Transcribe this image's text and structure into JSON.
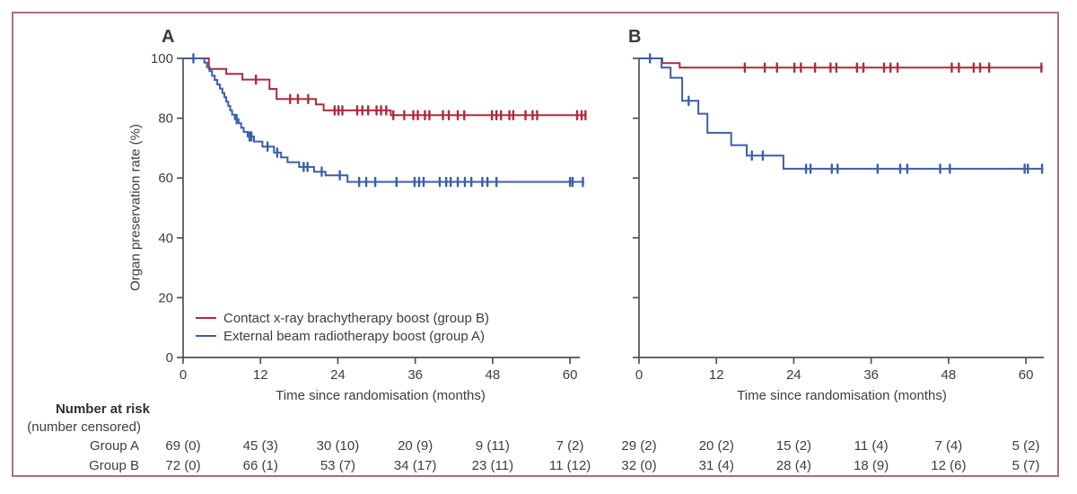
{
  "figure": {
    "border_color": "#b06d79",
    "background": "#ffffff",
    "text_color": "#3d3d3f",
    "axis_color": "#515154"
  },
  "y_axis_label": "Organ preservation rate (%)",
  "x_axis_label": "Time since randomisation (months)",
  "legend": {
    "items": [
      {
        "label": "Contact x-ray brachytherapy boost (group B)",
        "color": "#b02a3c"
      },
      {
        "label": "External beam radiotherapy boost (group A)",
        "color": "#3b5fa7"
      }
    ]
  },
  "chart_data": [
    {
      "id": "A",
      "label": "A",
      "type": "line",
      "subtype": "kaplan-meier-step",
      "xlabel": "Time since randomisation (months)",
      "ylabel": "Organ preservation rate (%)",
      "xlim": [
        0,
        63
      ],
      "ylim": [
        0,
        100
      ],
      "xticks": [
        0,
        12,
        24,
        36,
        48,
        60
      ],
      "yticks": [
        0,
        20,
        40,
        60,
        80,
        100
      ],
      "show_y_tick_labels": true,
      "grid": false,
      "legend_position": "lower-left",
      "series": [
        {
          "name": "Contact x-ray brachytherapy boost (group B)",
          "color": "#b02a3c",
          "steps": [
            [
              0,
              100
            ],
            [
              4.0,
              100
            ],
            [
              4.0,
              96.5
            ],
            [
              6.7,
              96.5
            ],
            [
              6.7,
              94.8
            ],
            [
              9.2,
              94.8
            ],
            [
              9.2,
              92.9
            ],
            [
              13.4,
              92.9
            ],
            [
              13.4,
              89.8
            ],
            [
              14.5,
              89.8
            ],
            [
              14.5,
              86.4
            ],
            [
              20.6,
              86.4
            ],
            [
              20.6,
              84.6
            ],
            [
              21.8,
              84.6
            ],
            [
              21.8,
              82.6
            ],
            [
              32.2,
              82.6
            ],
            [
              32.2,
              81.0
            ],
            [
              62.5,
              81.0
            ]
          ],
          "censors": [
            [
              11.3,
              92.9
            ],
            [
              16.6,
              86.4
            ],
            [
              17.8,
              86.4
            ],
            [
              19.4,
              86.4
            ],
            [
              23.5,
              82.6
            ],
            [
              24.1,
              82.6
            ],
            [
              24.7,
              82.6
            ],
            [
              27.0,
              82.6
            ],
            [
              27.8,
              82.6
            ],
            [
              28.7,
              82.6
            ],
            [
              30.0,
              82.6
            ],
            [
              30.7,
              82.6
            ],
            [
              31.5,
              82.6
            ],
            [
              32.6,
              81.0
            ],
            [
              34.3,
              81.0
            ],
            [
              35.7,
              81.0
            ],
            [
              36.4,
              81.0
            ],
            [
              37.5,
              81.0
            ],
            [
              38.2,
              81.0
            ],
            [
              40.3,
              81.0
            ],
            [
              41.2,
              81.0
            ],
            [
              42.6,
              81.0
            ],
            [
              43.6,
              81.0
            ],
            [
              47.9,
              81.0
            ],
            [
              48.6,
              81.0
            ],
            [
              49.3,
              81.0
            ],
            [
              50.6,
              81.0
            ],
            [
              51.2,
              81.0
            ],
            [
              53.1,
              81.0
            ],
            [
              54.2,
              81.0
            ],
            [
              54.9,
              81.0
            ],
            [
              61.1,
              81.0
            ],
            [
              61.8,
              81.0
            ],
            [
              62.4,
              81.0
            ]
          ]
        },
        {
          "name": "External beam radiotherapy boost (group A)",
          "color": "#3b5fa7",
          "steps": [
            [
              0,
              100
            ],
            [
              3.3,
              100
            ],
            [
              3.3,
              98.6
            ],
            [
              3.7,
              98.6
            ],
            [
              3.7,
              97.1
            ],
            [
              4.1,
              97.1
            ],
            [
              4.1,
              95.7
            ],
            [
              4.5,
              95.7
            ],
            [
              4.5,
              94.2
            ],
            [
              4.9,
              94.2
            ],
            [
              4.9,
              92.8
            ],
            [
              5.3,
              92.8
            ],
            [
              5.3,
              91.3
            ],
            [
              5.7,
              91.3
            ],
            [
              5.7,
              89.9
            ],
            [
              6.1,
              89.9
            ],
            [
              6.1,
              88.4
            ],
            [
              6.4,
              88.4
            ],
            [
              6.4,
              87.0
            ],
            [
              6.7,
              87.0
            ],
            [
              6.7,
              85.5
            ],
            [
              7.0,
              85.5
            ],
            [
              7.0,
              84.1
            ],
            [
              7.3,
              84.1
            ],
            [
              7.3,
              82.6
            ],
            [
              7.6,
              82.6
            ],
            [
              7.6,
              81.2
            ],
            [
              8.0,
              81.2
            ],
            [
              8.0,
              79.7
            ],
            [
              8.6,
              79.7
            ],
            [
              8.6,
              78.3
            ],
            [
              9.0,
              78.3
            ],
            [
              9.0,
              76.8
            ],
            [
              9.4,
              76.8
            ],
            [
              9.4,
              75.4
            ],
            [
              10.0,
              75.4
            ],
            [
              10.0,
              73.9
            ],
            [
              11.0,
              73.9
            ],
            [
              11.0,
              72.2
            ],
            [
              12.3,
              72.2
            ],
            [
              12.3,
              70.5
            ],
            [
              14.1,
              70.5
            ],
            [
              14.1,
              68.5
            ],
            [
              15.2,
              68.5
            ],
            [
              15.2,
              66.9
            ],
            [
              16.2,
              66.9
            ],
            [
              16.2,
              65.3
            ],
            [
              18.0,
              65.3
            ],
            [
              18.0,
              63.7
            ],
            [
              20.3,
              63.7
            ],
            [
              20.3,
              62.1
            ],
            [
              22.1,
              62.1
            ],
            [
              22.1,
              60.9
            ],
            [
              25.5,
              60.9
            ],
            [
              25.5,
              58.7
            ],
            [
              62.2,
              58.7
            ]
          ],
          "censors": [
            [
              1.6,
              100
            ],
            [
              8.3,
              79.7
            ],
            [
              10.3,
              73.9
            ],
            [
              10.6,
              73.9
            ],
            [
              13.1,
              70.5
            ],
            [
              14.6,
              68.5
            ],
            [
              18.7,
              63.7
            ],
            [
              19.3,
              63.7
            ],
            [
              21.5,
              62.1
            ],
            [
              24.3,
              60.9
            ],
            [
              27.3,
              58.7
            ],
            [
              28.4,
              58.7
            ],
            [
              29.8,
              58.7
            ],
            [
              33.1,
              58.7
            ],
            [
              35.9,
              58.7
            ],
            [
              36.6,
              58.7
            ],
            [
              37.3,
              58.7
            ],
            [
              39.8,
              58.7
            ],
            [
              40.8,
              58.7
            ],
            [
              41.5,
              58.7
            ],
            [
              42.6,
              58.7
            ],
            [
              43.7,
              58.7
            ],
            [
              44.7,
              58.7
            ],
            [
              46.4,
              58.7
            ],
            [
              47.2,
              58.7
            ],
            [
              48.6,
              58.7
            ],
            [
              60.0,
              58.7
            ],
            [
              60.4,
              58.7
            ],
            [
              62.0,
              58.7
            ]
          ]
        }
      ]
    },
    {
      "id": "B",
      "label": "B",
      "type": "line",
      "subtype": "kaplan-meier-step",
      "xlabel": "Time since randomisation (months)",
      "ylabel": "",
      "xlim": [
        0,
        63
      ],
      "ylim": [
        0,
        100
      ],
      "xticks": [
        0,
        12,
        24,
        36,
        48,
        60
      ],
      "yticks": [
        0,
        20,
        40,
        60,
        80,
        100
      ],
      "show_y_tick_labels": false,
      "grid": false,
      "legend_position": "none",
      "series": [
        {
          "name": "Contact x-ray brachytherapy boost (group B)",
          "color": "#b02a3c",
          "steps": [
            [
              0,
              100
            ],
            [
              3.6,
              100
            ],
            [
              3.6,
              98.4
            ],
            [
              6.3,
              98.4
            ],
            [
              6.3,
              96.9
            ],
            [
              62.6,
              96.9
            ]
          ],
          "censors": [
            [
              16.4,
              96.9
            ],
            [
              19.5,
              96.9
            ],
            [
              21.4,
              96.9
            ],
            [
              24.1,
              96.9
            ],
            [
              25.1,
              96.9
            ],
            [
              27.3,
              96.9
            ],
            [
              29.7,
              96.9
            ],
            [
              30.6,
              96.9
            ],
            [
              33.8,
              96.9
            ],
            [
              34.8,
              96.9
            ],
            [
              38.0,
              96.9
            ],
            [
              39.0,
              96.9
            ],
            [
              40.1,
              96.9
            ],
            [
              48.5,
              96.9
            ],
            [
              49.6,
              96.9
            ],
            [
              51.9,
              96.9
            ],
            [
              52.9,
              96.9
            ],
            [
              54.3,
              96.9
            ],
            [
              62.4,
              96.9
            ]
          ]
        },
        {
          "name": "External beam radiotherapy boost (group A)",
          "color": "#3b5fa7",
          "steps": [
            [
              0,
              100
            ],
            [
              3.5,
              100
            ],
            [
              3.5,
              96.9
            ],
            [
              4.9,
              96.9
            ],
            [
              4.9,
              93.5
            ],
            [
              6.7,
              93.5
            ],
            [
              6.7,
              85.8
            ],
            [
              9.2,
              85.8
            ],
            [
              9.2,
              81.5
            ],
            [
              10.6,
              81.5
            ],
            [
              10.6,
              75.1
            ],
            [
              14.3,
              75.1
            ],
            [
              14.3,
              71.0
            ],
            [
              16.7,
              71.0
            ],
            [
              16.7,
              67.5
            ],
            [
              22.4,
              67.5
            ],
            [
              22.4,
              63.1
            ],
            [
              62.7,
              63.1
            ]
          ],
          "censors": [
            [
              1.7,
              100
            ],
            [
              7.7,
              85.8
            ],
            [
              17.5,
              67.5
            ],
            [
              19.2,
              67.5
            ],
            [
              25.9,
              63.1
            ],
            [
              26.6,
              63.1
            ],
            [
              29.9,
              63.1
            ],
            [
              30.8,
              63.1
            ],
            [
              37.0,
              63.1
            ],
            [
              40.5,
              63.1
            ],
            [
              41.6,
              63.1
            ],
            [
              46.7,
              63.1
            ],
            [
              48.2,
              63.1
            ],
            [
              59.8,
              63.1
            ],
            [
              60.3,
              63.1
            ],
            [
              62.5,
              63.1
            ]
          ]
        }
      ]
    }
  ],
  "risk_table": {
    "header_line1": "Number at risk",
    "header_line2": "(number censored)",
    "rows": [
      {
        "label": "Group A",
        "panel_a": [
          "69 (0)",
          "45 (3)",
          "30 (10)",
          "20 (9)",
          "9 (11)",
          "7 (2)"
        ],
        "panel_b": [
          "29 (2)",
          "20 (2)",
          "15 (2)",
          "11 (4)",
          "7 (4)",
          "5 (2)"
        ]
      },
      {
        "label": "Group B",
        "panel_a": [
          "72 (0)",
          "66 (1)",
          "53 (7)",
          "34 (17)",
          "23 (11)",
          "11 (12)"
        ],
        "panel_b": [
          "32 (0)",
          "31 (4)",
          "28 (4)",
          "18 (9)",
          "12 (6)",
          "5 (7)"
        ]
      }
    ]
  }
}
